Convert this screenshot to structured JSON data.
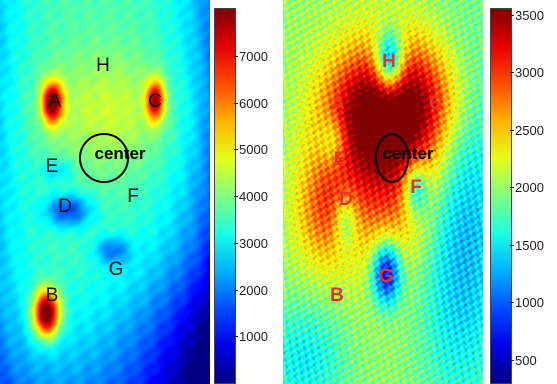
{
  "chart_data": [
    {
      "type": "heatmap",
      "colorbar": {
        "range": [
          0,
          8000
        ],
        "ticks": [
          1000,
          2000,
          3000,
          4000,
          5000,
          6000,
          7000
        ],
        "tick_labels": [
          "1000",
          "2000",
          "3000",
          "4000",
          "5000",
          "6000",
          "7000"
        ],
        "colormap": "jet"
      },
      "points": [
        {
          "label": "A",
          "value": 6500
        },
        {
          "label": "B",
          "value": 7200
        },
        {
          "label": "C",
          "value": 6300
        },
        {
          "label": "D",
          "value": 1300
        },
        {
          "label": "E",
          "value": 2200
        },
        {
          "label": "F",
          "value": 3800
        },
        {
          "label": "G",
          "value": 1800
        },
        {
          "label": "H",
          "value": 3600
        },
        {
          "label": "center",
          "value": 4000
        }
      ],
      "label_color": "#111111"
    },
    {
      "type": "heatmap",
      "colorbar": {
        "range": [
          300,
          3550
        ],
        "ticks": [
          500,
          1000,
          1500,
          2000,
          2500,
          3000,
          3500
        ],
        "tick_labels": [
          "500",
          "1000",
          "1500",
          "2000",
          "2500",
          "3000",
          "3500"
        ],
        "colormap": "jet"
      },
      "points": [
        {
          "label": "A",
          "value": 3000
        },
        {
          "label": "B",
          "value": 2300
        },
        {
          "label": "C",
          "value": 3100
        },
        {
          "label": "D",
          "value": 1400
        },
        {
          "label": "E",
          "value": 1800
        },
        {
          "label": "F",
          "value": 1100
        },
        {
          "label": "G",
          "value": 700
        },
        {
          "label": "H",
          "value": 600
        },
        {
          "label": "center",
          "value": 3400
        }
      ],
      "label_color": "#e8332a"
    }
  ]
}
